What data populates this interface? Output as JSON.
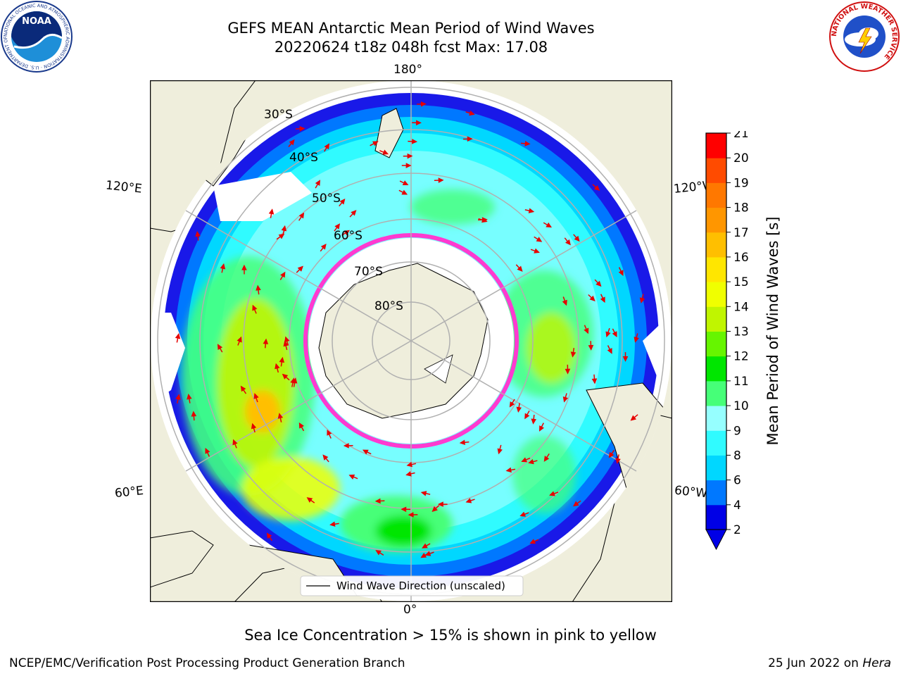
{
  "header": {
    "title_line1": "GEFS MEAN Antarctic Mean Period of Wind Waves",
    "title_line2": "20220624 t18z 048h fcst   Max: 17.08"
  },
  "map": {
    "projection": "south-polar-stereographic",
    "lon_labels": {
      "top": "180°",
      "left_upper": "120°E",
      "right_upper": "120°W",
      "left_lower": "60°E",
      "right_lower": "60°W",
      "bottom": "0°"
    },
    "lat_labels": [
      "30°S",
      "40°S",
      "50°S",
      "60°S",
      "70°S",
      "80°S"
    ],
    "legend_label": "Wind Wave Direction (unscaled)",
    "colors": {
      "land": "#efeedc",
      "ocean_base": "#00e5ff",
      "arrow": "#e60000",
      "ice_edge": "#ff3ad0",
      "grid": "#b0b0b0"
    }
  },
  "colorbar": {
    "label": "Mean Period of Wind Waves [s]",
    "ticks": [
      "2",
      "4",
      "6",
      "8",
      "9",
      "10",
      "11",
      "12",
      "13",
      "14",
      "15",
      "16",
      "17",
      "18",
      "19",
      "20",
      "21"
    ],
    "colors": [
      "#0000e6",
      "#0078ff",
      "#00d7ff",
      "#30fbff",
      "#96ffff",
      "#46ff78",
      "#00e600",
      "#66f500",
      "#c0f500",
      "#f0ff00",
      "#ffe600",
      "#ffbf00",
      "#ff9600",
      "#ff7800",
      "#ff4b00",
      "#ff0000"
    ],
    "extend": "min"
  },
  "note": "Sea Ice Concentration > 15% is shown in pink to yellow",
  "footer": {
    "left": "NCEP/EMC/Verification Post Processing Product Generation Branch",
    "right_prefix": "25 Jun 2022 on ",
    "right_machine": "Hera"
  },
  "logos": {
    "noaa_text": "NOAA",
    "noaa_ring": "NATIONAL OCEANIC AND ATMOSPHERIC ADMINISTRATION · U.S. DEPARTMENT OF COMMERCE",
    "nws_ring": "NATIONAL WEATHER SERVICE"
  }
}
